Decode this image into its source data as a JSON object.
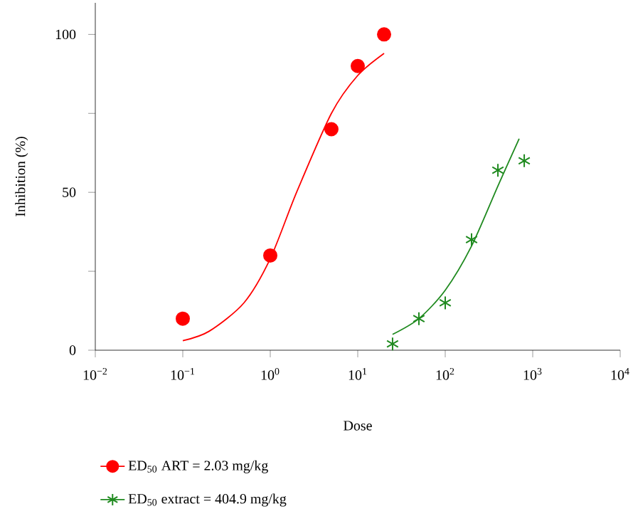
{
  "chart_data": {
    "type": "scatter",
    "xlabel": "Dose",
    "ylabel": "Inhibition (%)",
    "log": "x",
    "legend": "bottom",
    "grid": false,
    "xlim": [
      0.01,
      10000
    ],
    "ylim": [
      0,
      110
    ],
    "xticks": [
      {
        "value": 0.01,
        "label": "10$^{−2}$"
      },
      {
        "value": 0.1,
        "label": "10$^{−1}$"
      },
      {
        "value": 1,
        "label": "10$^{0}$"
      },
      {
        "value": 10,
        "label": "10$^{1}$"
      },
      {
        "value": 100,
        "label": "10$^{2}$"
      },
      {
        "value": 1000,
        "label": "10$^{3}$"
      },
      {
        "value": 10000,
        "label": "10$^{4}$"
      }
    ],
    "yticks": [
      0,
      {
        "value": 25,
        "label": null
      },
      50,
      {
        "value": 75,
        "label": null
      },
      100
    ],
    "series": [
      {
        "name": "ED$_{50}$ ART = 2.03 mg/kg",
        "marker": "circle",
        "color": "#ff0000",
        "x": [
          0.1,
          1,
          5,
          10,
          20
        ],
        "values": [
          10,
          30,
          70,
          90,
          100
        ]
      },
      {
        "type": "line",
        "marker": "none",
        "color": "#ff0000",
        "x": [
          0.1,
          0.2,
          0.5,
          1,
          2,
          5,
          10,
          20
        ],
        "values": [
          3,
          6,
          15,
          29,
          50,
          75,
          87,
          94
        ]
      },
      {
        "name": "ED$_{50}$ extract = 404.9 mg/kg",
        "marker": "cross",
        "color": "#1f8a1f",
        "x": [
          25,
          50,
          100,
          200,
          400,
          800
        ],
        "values": [
          2,
          10,
          15,
          35,
          57,
          60
        ]
      },
      {
        "type": "line",
        "marker": "none",
        "color": "#1f8a1f",
        "x": [
          25,
          50,
          100,
          200,
          400,
          700
        ],
        "values": [
          5,
          10,
          19,
          33,
          52,
          67
        ]
      }
    ]
  }
}
